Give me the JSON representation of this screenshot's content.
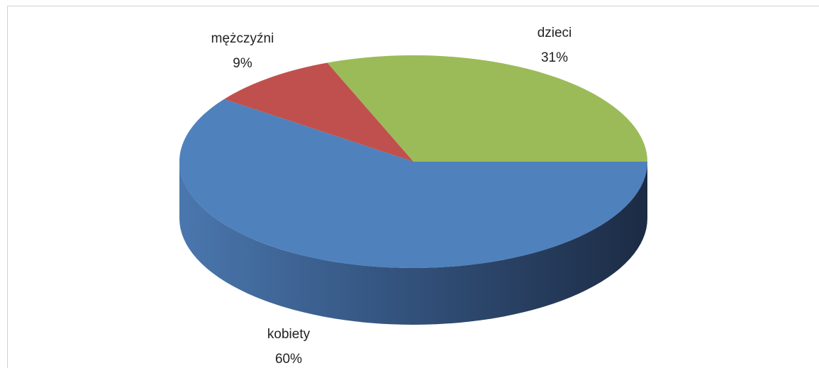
{
  "chart_data": {
    "type": "pie3d",
    "categories": [
      "dzieci",
      "mężczyźni",
      "kobiety"
    ],
    "values": [
      31,
      9,
      60
    ],
    "value_labels": [
      "31%",
      "9%",
      "60%"
    ],
    "colors": [
      "#9bbb59",
      "#c0504d",
      "#4f81bd"
    ]
  }
}
